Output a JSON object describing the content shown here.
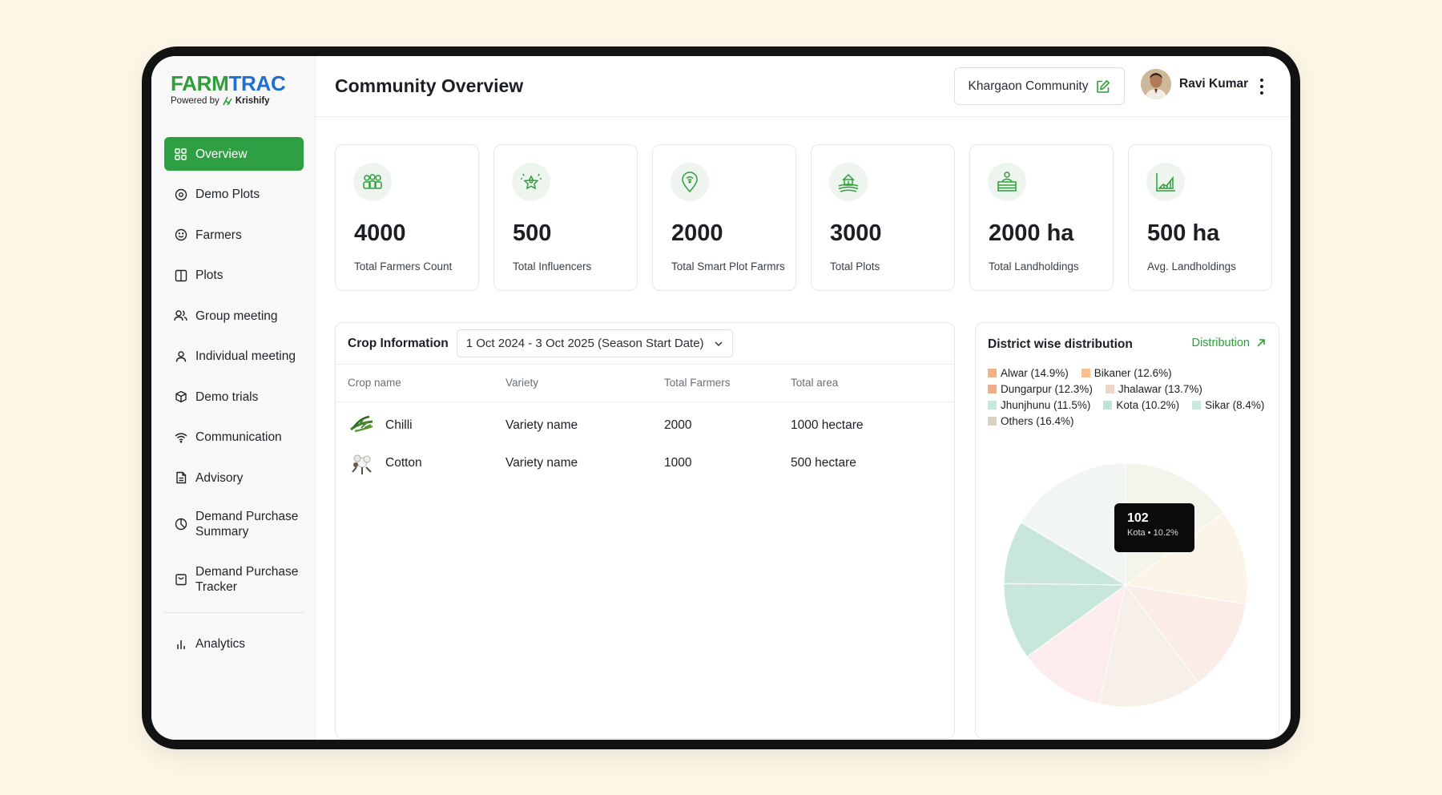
{
  "brand": {
    "name_part1": "FARM",
    "name_part2": "TRAC",
    "powered_by": "Powered by",
    "partner": "Krishify"
  },
  "sidebar": {
    "items": [
      {
        "label": "Overview",
        "icon": "grid-icon"
      },
      {
        "label": "Demo Plots",
        "icon": "target-icon"
      },
      {
        "label": "Farmers",
        "icon": "smile-icon"
      },
      {
        "label": "Plots",
        "icon": "columns-icon"
      },
      {
        "label": "Group meeting",
        "icon": "users-icon"
      },
      {
        "label": "Individual meeting",
        "icon": "user-icon"
      },
      {
        "label": "Demo trials",
        "icon": "box-icon"
      },
      {
        "label": "Communication",
        "icon": "wifi-icon"
      },
      {
        "label": "Advisory",
        "icon": "document-icon"
      },
      {
        "label": "Demand Purchase\nSummary",
        "icon": "pie-icon"
      },
      {
        "label": "Demand Purchase\nTracker",
        "icon": "bag-icon"
      },
      {
        "label": "Analytics",
        "icon": "bar-chart-icon"
      }
    ]
  },
  "header": {
    "title": "Community Overview",
    "community": "Khargaon Community",
    "user_name": "Ravi Kumar"
  },
  "stats": [
    {
      "value": "4000",
      "label": "Total Farmers Count",
      "icon": "farmers-group-icon"
    },
    {
      "value": "500",
      "label": "Total Influencers",
      "icon": "influencer-star-icon"
    },
    {
      "value": "2000",
      "label": "Total Smart Plot Farmrs",
      "icon": "smart-pin-icon"
    },
    {
      "value": "3000",
      "label": "Total Plots",
      "icon": "farmhouse-icon"
    },
    {
      "value": "2000 ha",
      "label": "Total Landholdings",
      "icon": "landholding-icon"
    },
    {
      "value": "500 ha",
      "label": "Avg. Landholdings",
      "icon": "area-chart-icon"
    }
  ],
  "crop": {
    "title": "Crop Information",
    "date_range": "1 Oct 2024 - 3 Oct 2025 (Season Start Date)",
    "columns": [
      "Crop name",
      "Variety",
      "Total Farmers",
      "Total area"
    ],
    "rows": [
      {
        "name": "Chilli",
        "variety": "Variety name",
        "farmers": "2000",
        "area": "1000 hectare"
      },
      {
        "name": "Cotton",
        "variety": "Variety name",
        "farmers": "1000",
        "area": "500 hectare"
      }
    ]
  },
  "district": {
    "title": "District wise distribution",
    "link": "Distribution",
    "legend": [
      {
        "label": "Alwar (14.9%)",
        "color": "#f4b184"
      },
      {
        "label": "Bikaner (12.6%)",
        "color": "#f6bf94"
      },
      {
        "label": "Dungarpur (12.3%)",
        "color": "#f3ad86"
      },
      {
        "label": "Jhalawar (13.7%)",
        "color": "#ead7c9"
      },
      {
        "label": "Jhunjhunu (11.5%)",
        "color": "#c7e8de"
      },
      {
        "label": "Kota (10.2%)",
        "color": "#bfe3d5"
      },
      {
        "label": "Sikar (8.4%)",
        "color": "#cce9dd"
      },
      {
        "label": "Others (16.4%)",
        "color": "#d9d3c7"
      }
    ],
    "tooltip": {
      "value": "102",
      "label": "Kota • 10.2%"
    }
  },
  "chart_data": {
    "type": "pie",
    "title": "District wise distribution",
    "categories": [
      "Alwar",
      "Bikaner",
      "Dungarpur",
      "Jhalawar",
      "Jhunjhunu",
      "Kota",
      "Sikar",
      "Others"
    ],
    "values": [
      14.9,
      12.6,
      12.3,
      13.7,
      11.5,
      10.2,
      8.4,
      16.4
    ],
    "highlighted": "Kota",
    "colors": [
      "#f5f4ea",
      "#fcf4e6",
      "#fbece8",
      "#f6f0e8",
      "#fcecee",
      "#eff7f5",
      "#c9e6da",
      "#f2f6f3"
    ],
    "legend_position": "top"
  }
}
